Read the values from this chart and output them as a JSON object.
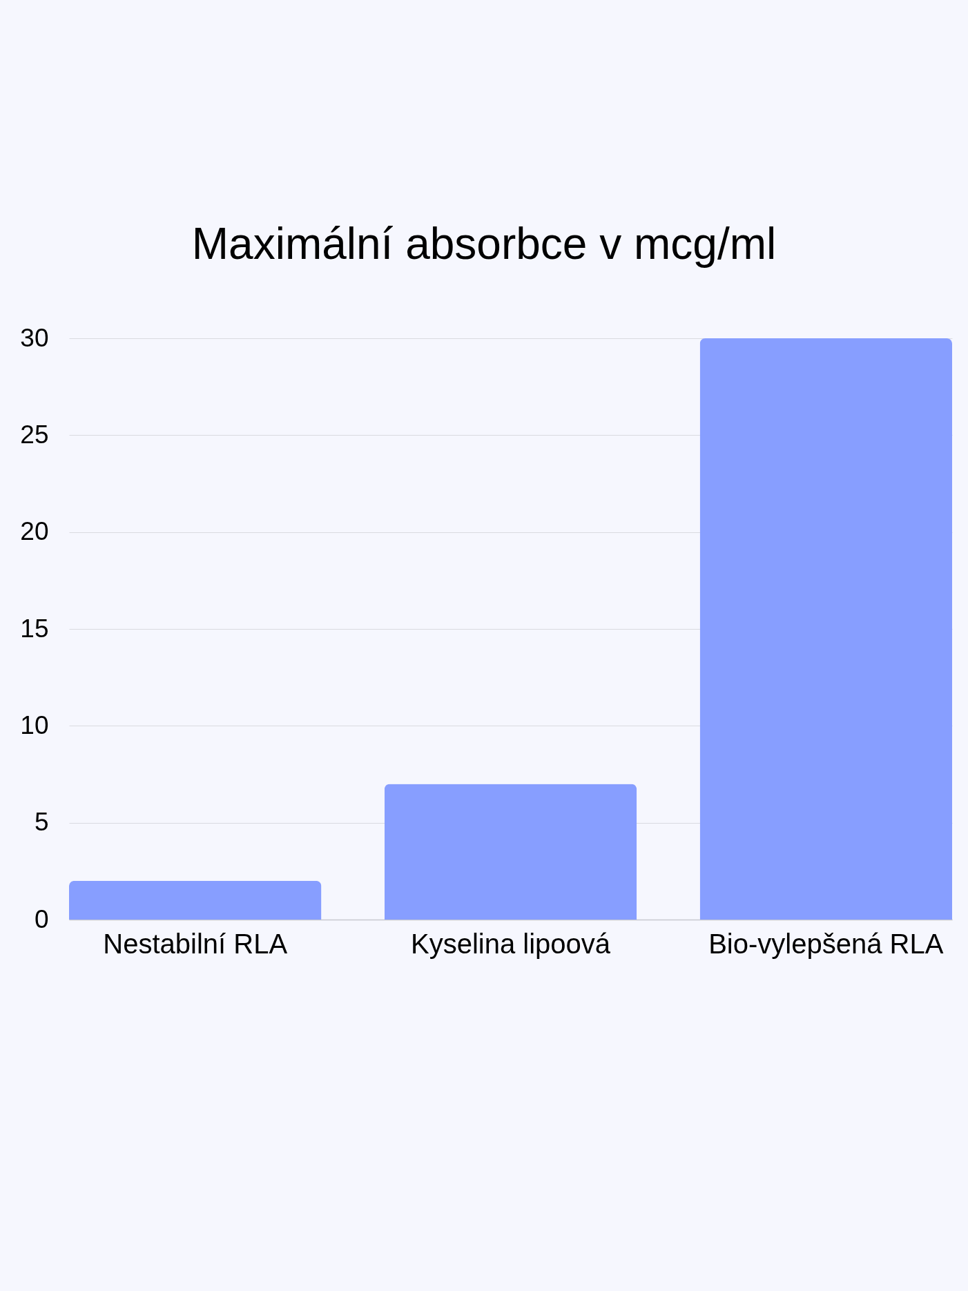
{
  "chart_data": {
    "type": "bar",
    "title": "Maximální absorbce v mcg/ml",
    "categories": [
      "Nestabilní RLA",
      "Kyselina lipoová",
      "Bio-vylepšená RLA"
    ],
    "values": [
      2,
      7,
      30
    ],
    "color": "#879eff",
    "ylim": [
      0,
      30
    ],
    "yticks": [
      0,
      5,
      10,
      15,
      20,
      25,
      30
    ],
    "grid": "y"
  }
}
